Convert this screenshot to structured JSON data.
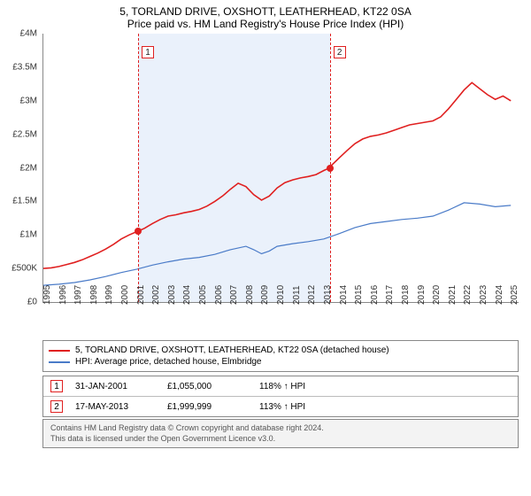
{
  "title": "5, TORLAND DRIVE, OXSHOTT, LEATHERHEAD, KT22 0SA",
  "subtitle": "Price paid vs. HM Land Registry's House Price Index (HPI)",
  "chart": {
    "type": "line",
    "background_color": "#ffffff",
    "axis_color": "#888888",
    "text_color": "#333333",
    "y_label_fontsize": 10,
    "x_label_fontsize": 10,
    "x_min": 1995,
    "x_max": 2025.5,
    "y_min": 0,
    "y_max": 4000000,
    "y_ticks": [
      0,
      500000,
      1000000,
      1500000,
      2000000,
      2500000,
      3000000,
      3500000,
      4000000
    ],
    "y_tick_labels": [
      "£0",
      "£500K",
      "£1M",
      "£1.5M",
      "£2M",
      "£2.5M",
      "£3M",
      "£3.5M",
      "£4M"
    ],
    "x_ticks": [
      1995,
      1996,
      1997,
      1998,
      1999,
      2000,
      2001,
      2002,
      2003,
      2004,
      2005,
      2006,
      2007,
      2008,
      2009,
      2010,
      2011,
      2012,
      2013,
      2014,
      2015,
      2016,
      2017,
      2018,
      2019,
      2020,
      2021,
      2022,
      2023,
      2024,
      2025
    ],
    "shaded_band": {
      "x_start": 2001.08,
      "x_end": 2013.38,
      "fill": "#eaf1fb"
    },
    "marker_line_color": "#e02020",
    "marker_badge_border": "#e02020",
    "marker_badge_bg": "#ffffff",
    "markers": [
      {
        "n": "1",
        "x": 2001.08,
        "y": 1055000,
        "dot_color": "#e02020"
      },
      {
        "n": "2",
        "x": 2013.38,
        "y": 1999999,
        "dot_color": "#e02020"
      }
    ],
    "series": [
      {
        "name": "price_paid",
        "label": "5, TORLAND DRIVE, OXSHOTT, LEATHERHEAD, KT22 0SA (detached house)",
        "color": "#e02020",
        "line_width": 1.6,
        "points": [
          [
            1995.0,
            500000
          ],
          [
            1995.5,
            510000
          ],
          [
            1996.0,
            530000
          ],
          [
            1996.5,
            560000
          ],
          [
            1997.0,
            590000
          ],
          [
            1997.5,
            630000
          ],
          [
            1998.0,
            680000
          ],
          [
            1998.5,
            730000
          ],
          [
            1999.0,
            790000
          ],
          [
            1999.5,
            860000
          ],
          [
            2000.0,
            940000
          ],
          [
            2000.5,
            1000000
          ],
          [
            2001.0,
            1050000
          ],
          [
            2001.08,
            1055000
          ],
          [
            2001.5,
            1100000
          ],
          [
            2002.0,
            1170000
          ],
          [
            2002.5,
            1230000
          ],
          [
            2003.0,
            1280000
          ],
          [
            2003.5,
            1300000
          ],
          [
            2004.0,
            1330000
          ],
          [
            2004.5,
            1350000
          ],
          [
            2005.0,
            1380000
          ],
          [
            2005.5,
            1430000
          ],
          [
            2006.0,
            1500000
          ],
          [
            2006.5,
            1580000
          ],
          [
            2007.0,
            1680000
          ],
          [
            2007.5,
            1770000
          ],
          [
            2008.0,
            1720000
          ],
          [
            2008.5,
            1600000
          ],
          [
            2009.0,
            1520000
          ],
          [
            2009.5,
            1580000
          ],
          [
            2010.0,
            1700000
          ],
          [
            2010.5,
            1780000
          ],
          [
            2011.0,
            1820000
          ],
          [
            2011.5,
            1850000
          ],
          [
            2012.0,
            1870000
          ],
          [
            2012.5,
            1900000
          ],
          [
            2013.0,
            1960000
          ],
          [
            2013.38,
            2000000
          ],
          [
            2013.5,
            2040000
          ],
          [
            2014.0,
            2150000
          ],
          [
            2014.5,
            2260000
          ],
          [
            2015.0,
            2360000
          ],
          [
            2015.5,
            2430000
          ],
          [
            2016.0,
            2470000
          ],
          [
            2016.5,
            2490000
          ],
          [
            2017.0,
            2520000
          ],
          [
            2017.5,
            2560000
          ],
          [
            2018.0,
            2600000
          ],
          [
            2018.5,
            2640000
          ],
          [
            2019.0,
            2660000
          ],
          [
            2019.5,
            2680000
          ],
          [
            2020.0,
            2700000
          ],
          [
            2020.5,
            2760000
          ],
          [
            2021.0,
            2880000
          ],
          [
            2021.5,
            3020000
          ],
          [
            2022.0,
            3160000
          ],
          [
            2022.5,
            3270000
          ],
          [
            2023.0,
            3180000
          ],
          [
            2023.5,
            3090000
          ],
          [
            2024.0,
            3020000
          ],
          [
            2024.5,
            3070000
          ],
          [
            2025.0,
            3000000
          ]
        ]
      },
      {
        "name": "hpi",
        "label": "HPI: Average price, detached house, Elmbridge",
        "color": "#4a7bc8",
        "line_width": 1.2,
        "points": [
          [
            1995.0,
            250000
          ],
          [
            1996.0,
            265000
          ],
          [
            1997.0,
            290000
          ],
          [
            1998.0,
            330000
          ],
          [
            1999.0,
            380000
          ],
          [
            2000.0,
            440000
          ],
          [
            2001.0,
            490000
          ],
          [
            2002.0,
            550000
          ],
          [
            2003.0,
            600000
          ],
          [
            2004.0,
            640000
          ],
          [
            2005.0,
            665000
          ],
          [
            2006.0,
            710000
          ],
          [
            2007.0,
            780000
          ],
          [
            2008.0,
            830000
          ],
          [
            2008.5,
            780000
          ],
          [
            2009.0,
            720000
          ],
          [
            2009.5,
            760000
          ],
          [
            2010.0,
            830000
          ],
          [
            2011.0,
            870000
          ],
          [
            2012.0,
            900000
          ],
          [
            2013.0,
            940000
          ],
          [
            2014.0,
            1020000
          ],
          [
            2015.0,
            1110000
          ],
          [
            2016.0,
            1170000
          ],
          [
            2017.0,
            1200000
          ],
          [
            2018.0,
            1230000
          ],
          [
            2019.0,
            1250000
          ],
          [
            2020.0,
            1280000
          ],
          [
            2021.0,
            1370000
          ],
          [
            2022.0,
            1480000
          ],
          [
            2023.0,
            1460000
          ],
          [
            2024.0,
            1420000
          ],
          [
            2025.0,
            1440000
          ]
        ]
      }
    ]
  },
  "legend": {
    "border_color": "#888888",
    "series1_color": "#e02020",
    "series1_label": "5, TORLAND DRIVE, OXSHOTT, LEATHERHEAD, KT22 0SA (detached house)",
    "series2_color": "#4a7bc8",
    "series2_label": "HPI: Average price, detached house, Elmbridge"
  },
  "table": {
    "rows": [
      {
        "n": "1",
        "date": "31-JAN-2001",
        "price": "£1,055,000",
        "pct": "118% ↑ HPI"
      },
      {
        "n": "2",
        "date": "17-MAY-2013",
        "price": "£1,999,999",
        "pct": "113% ↑ HPI"
      }
    ]
  },
  "footer": {
    "line1": "Contains HM Land Registry data © Crown copyright and database right 2024.",
    "line2": "This data is licensed under the Open Government Licence v3.0."
  }
}
